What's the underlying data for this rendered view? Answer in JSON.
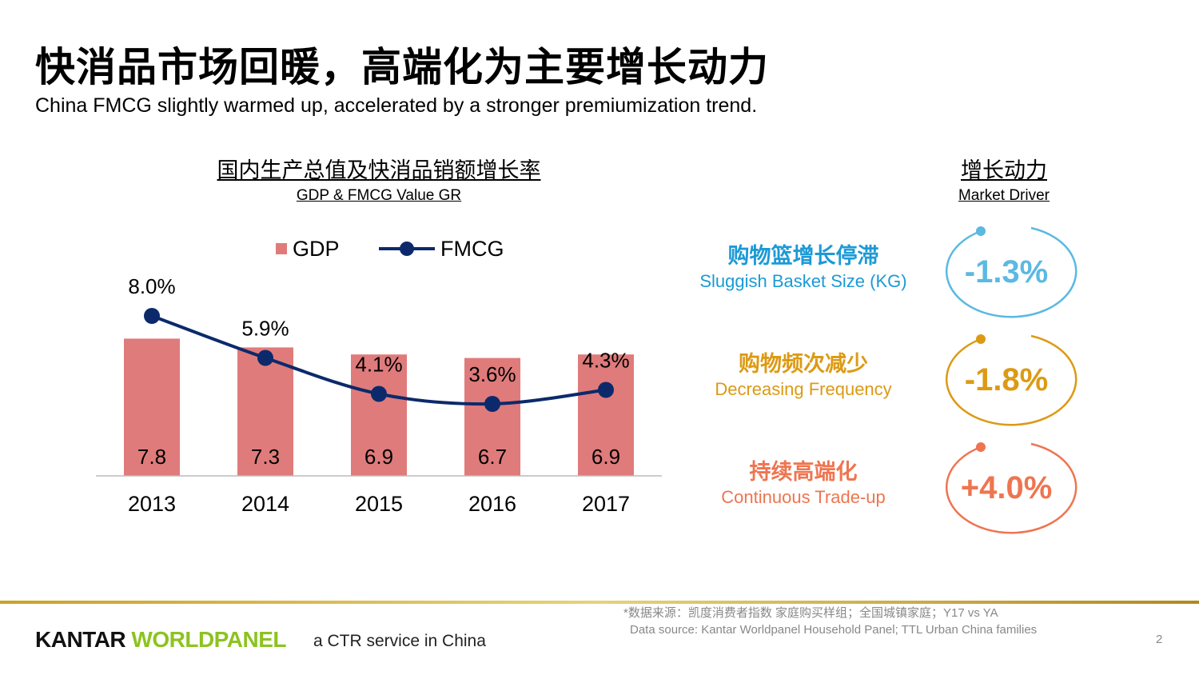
{
  "title": "快消品市场回暖，高端化为主要增长动力",
  "subtitle": "China FMCG slightly warmed up, accelerated by a stronger premiumization trend.",
  "chart_title_cn": "国内生产总值及快消品销额增长率",
  "chart_title_en": "GDP & FMCG Value GR",
  "chart_data": {
    "type": "bar+line",
    "categories": [
      "2013",
      "2014",
      "2015",
      "2016",
      "2017"
    ],
    "legend_position": "top",
    "series": [
      {
        "name": "GDP",
        "type": "bar",
        "color": "#e07b7b",
        "values": [
          7.8,
          7.3,
          6.9,
          6.7,
          6.9
        ],
        "labels": [
          "7.8",
          "7.3",
          "6.9",
          "6.7",
          "6.9"
        ]
      },
      {
        "name": "FMCG",
        "type": "line",
        "color": "#0c2a6b",
        "values": [
          8.0,
          5.9,
          4.1,
          3.6,
          4.3
        ],
        "labels": [
          "8.0%",
          "5.9%",
          "4.1%",
          "3.6%",
          "4.3%"
        ]
      }
    ],
    "grid": false
  },
  "driver_title_cn": "增长动力",
  "driver_title_en": "Market Driver",
  "drivers": [
    {
      "cn": "购物篮增长停滞",
      "en": "Sluggish Basket Size (KG)",
      "value": "-1.3%",
      "color": "#5bb9e2",
      "label_color": "#1c9ad6"
    },
    {
      "cn": "购物频次减少",
      "en": "Decreasing Frequency",
      "value": "-1.8%",
      "color": "#dc9a14",
      "label_color": "#dc9a14"
    },
    {
      "cn": "持续高端化",
      "en": "Continuous Trade-up",
      "value": "+4.0%",
      "color": "#ee7550",
      "label_color": "#ee7550"
    }
  ],
  "footer": {
    "source_cn": "*数据来源：凯度消费者指数 家庭购买样组；全国城镇家庭；Y17 vs YA",
    "source_en": "Data source: Kantar Worldpanel Household Panel; TTL Urban China families",
    "logo": "KANTAR WORLDPANEL",
    "tagline": "a CTR service in China",
    "page": "2"
  }
}
